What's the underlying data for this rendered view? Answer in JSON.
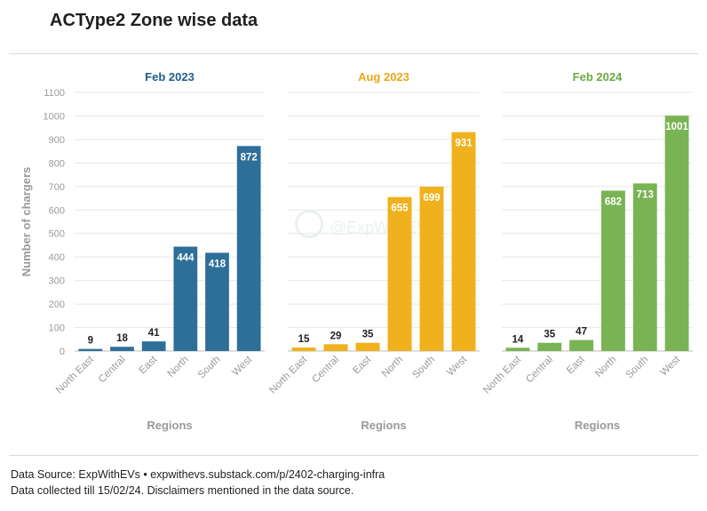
{
  "header": {
    "title": "ACType2 Zone wise data"
  },
  "watermark": {
    "text": "@ExpWithEVs"
  },
  "footer": {
    "line1": "Data Source: ExpWithEVs • expwithevs.substack.com/p/2402-charging-infra",
    "line2": "Data collected till 15/02/24. Disclaimers mentioned in the data source."
  },
  "chart_data": [
    {
      "type": "bar",
      "title": "Feb 2023",
      "color": "#2e6f99",
      "title_color": "#1f5f8b",
      "categories": [
        "North East",
        "Central",
        "East",
        "North",
        "South",
        "West"
      ],
      "values": [
        9,
        18,
        41,
        444,
        418,
        872
      ],
      "xlabel": "Regions",
      "ylabel": "Number of chargers",
      "ylim": [
        0,
        1100
      ],
      "yticks": [
        0,
        100,
        200,
        300,
        400,
        500,
        600,
        700,
        800,
        900,
        1000,
        1100
      ],
      "grid": true
    },
    {
      "type": "bar",
      "title": "Aug 2023",
      "color": "#efb21d",
      "title_color": "#e6a816",
      "categories": [
        "North East",
        "Central",
        "East",
        "North",
        "South",
        "West"
      ],
      "values": [
        15,
        29,
        35,
        655,
        699,
        931
      ],
      "xlabel": "Regions",
      "ylim": [
        0,
        1100
      ],
      "grid": true
    },
    {
      "type": "bar",
      "title": "Feb 2024",
      "color": "#7ab354",
      "title_color": "#6aa843",
      "categories": [
        "North East",
        "Central",
        "East",
        "North",
        "South",
        "West"
      ],
      "values": [
        14,
        35,
        47,
        682,
        713,
        1001
      ],
      "xlabel": "Regions",
      "ylim": [
        0,
        1100
      ],
      "grid": true
    }
  ]
}
